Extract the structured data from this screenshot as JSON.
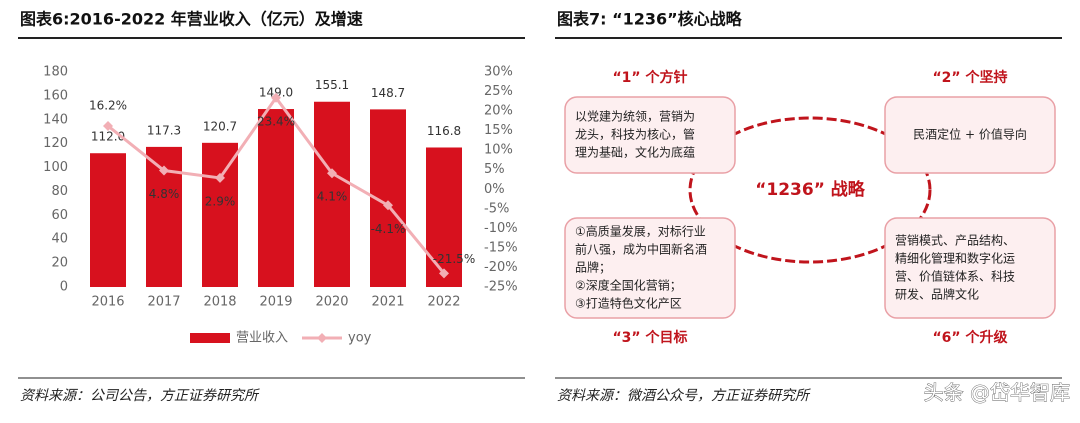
{
  "chart_data": {
    "type": "bar",
    "title": "图表6:2016-2022 年营业收入（亿元）及增速",
    "categories": [
      "2016",
      "2017",
      "2018",
      "2019",
      "2020",
      "2021",
      "2022"
    ],
    "series": [
      {
        "name": "营业收入",
        "color": "#d7111e",
        "values": [
          112.0,
          117.3,
          120.7,
          149.0,
          155.1,
          148.7,
          116.8
        ],
        "value_labels": [
          "112.0",
          "117.3",
          "120.7",
          "149.0",
          "155.1",
          "148.7",
          "116.8"
        ]
      },
      {
        "name": "yoy",
        "type": "line",
        "axis": "y2",
        "color": "#f2afb5",
        "values": [
          16.2,
          4.8,
          2.9,
          23.4,
          4.1,
          -4.1,
          -21.5
        ],
        "value_labels": [
          "16.2%",
          "4.8%",
          "2.9%",
          "23.4%",
          "4.1%",
          "-4.1%",
          "-21.5%"
        ]
      }
    ],
    "ylim": [
      0,
      180
    ],
    "yticks": [
      0,
      20,
      40,
      60,
      80,
      100,
      120,
      140,
      160,
      180
    ],
    "y2lim": [
      -25,
      30
    ],
    "y2ticks": [
      {
        "value": -25,
        "label": "-25%"
      },
      {
        "value": -20,
        "label": "-20%"
      },
      {
        "value": -15,
        "label": "-15%"
      },
      {
        "value": -10,
        "label": "-10%"
      },
      {
        "value": -5,
        "label": "-5%"
      },
      {
        "value": 0,
        "label": "0%"
      },
      {
        "value": 5,
        "label": "5%"
      },
      {
        "value": 10,
        "label": "10%"
      },
      {
        "value": 15,
        "label": "15%"
      },
      {
        "value": 20,
        "label": "20%"
      },
      {
        "value": 25,
        "label": "25%"
      },
      {
        "value": 30,
        "label": "30%"
      }
    ],
    "legend": "bottom",
    "grid": false,
    "source": "资料来源：公司公告，方正证券研究所"
  },
  "diagram": {
    "title": "图表7:  “1236”核心战略",
    "center": "“1236” 战略",
    "nodes": [
      {
        "label": "“1” 个方针",
        "lines": [
          "以党建为统领，营销为",
          "龙头，科技为核心，管",
          "理为基础，文化为底蕴"
        ]
      },
      {
        "label": "“2” 个坚持",
        "lines": [
          "民酒定位 + 价值导向"
        ]
      },
      {
        "label": "“3” 个目标",
        "lines": [
          "①高质量发展，对标行业",
          "前八强，成为中国新名酒",
          "品牌；",
          "②深度全国化营销；",
          "③打造特色文化产区"
        ]
      },
      {
        "label": "“6” 个升级",
        "lines": [
          "营销模式、产品结构、",
          "精细化管理和数字化运",
          "营、价值链体系、科技",
          "研发、品牌文化"
        ]
      }
    ],
    "source": "资料来源：微酒公众号，方正证券研究所"
  },
  "watermark": "头条 @岱华智库"
}
